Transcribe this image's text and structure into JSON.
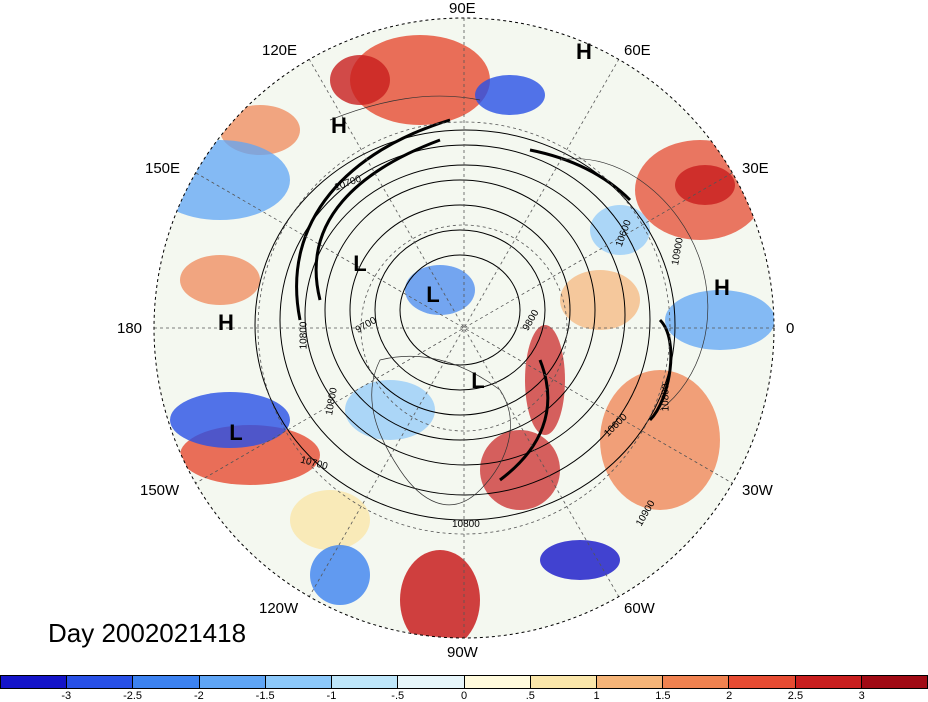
{
  "map": {
    "projection": "north-polar-stereographic",
    "longitude_labels": [
      "90E",
      "60E",
      "30E",
      "0",
      "30W",
      "60W",
      "90W",
      "120W",
      "150W",
      "180",
      "150E",
      "120E"
    ],
    "contour_labels": [
      "10600",
      "10700",
      "10800",
      "10900",
      "9700",
      "9800",
      "10600",
      "10700",
      "10800",
      "10900",
      "10800",
      "10800"
    ],
    "pressure_centers": [
      "H",
      "H",
      "H",
      "H",
      "L",
      "L",
      "L",
      "L"
    ],
    "title": "Day 2002021418"
  },
  "colorbar": {
    "colors": [
      "#1414c8",
      "#2850e6",
      "#3c82f0",
      "#5fa5f5",
      "#8cc8fa",
      "#bee6fa",
      "#e6f5fa",
      "#fffadc",
      "#fae6aa",
      "#f5b478",
      "#f08250",
      "#e64b32",
      "#c81e1e",
      "#a00a14"
    ],
    "ticks": [
      "-3",
      "-2.5",
      "-2",
      "-1.5",
      "-1",
      "-.5",
      "0",
      ".5",
      "1",
      "1.5",
      "2",
      "2.5",
      "3"
    ]
  }
}
